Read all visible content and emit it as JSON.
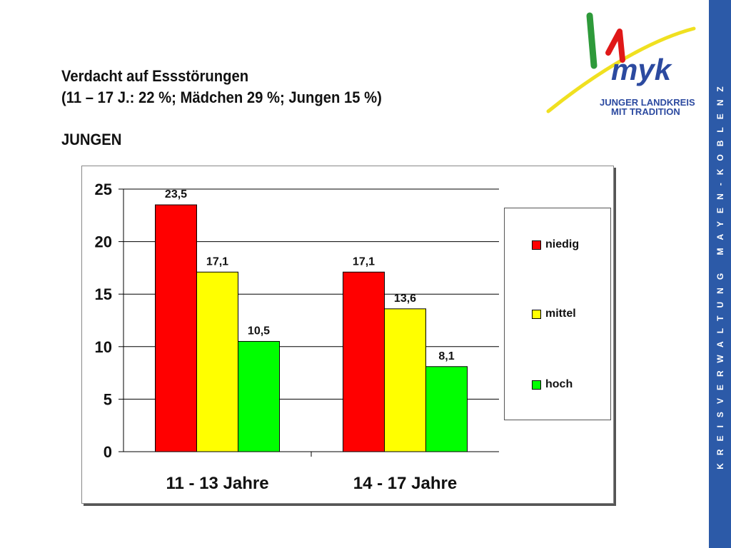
{
  "slide": {
    "title": "Verdacht auf Essstörungen",
    "subtitle": "(11 – 17 J.: 22 %; Mädchen 29 %; Jungen 15 %)",
    "group_label": "JUNGEN"
  },
  "logo": {
    "text_line1": "JUNGER LANDKREIS",
    "text_line2": "MIT TRADITION",
    "mark_text": "myk",
    "colors": {
      "green": "#2e9a3a",
      "red": "#e01818",
      "yellow": "#f0e020",
      "blue": "#2c4aa0"
    }
  },
  "sidebar": {
    "text": "KREISVERWALTUNG MAYEN-KOBLENZ",
    "color": "#2c5aa8"
  },
  "chart_data": {
    "type": "bar",
    "categories": [
      "11 - 13 Jahre",
      "14 - 17 Jahre"
    ],
    "series": [
      {
        "name": "niedig",
        "values": [
          23.5,
          17.1
        ],
        "labels": [
          "23,5",
          "17,1"
        ],
        "color": "#ff0000"
      },
      {
        "name": "mittel",
        "values": [
          17.1,
          13.6
        ],
        "labels": [
          "17,1",
          "13,6"
        ],
        "color": "#ffff00"
      },
      {
        "name": "hoch",
        "values": [
          10.5,
          8.1
        ],
        "labels": [
          "10,5",
          "8,1"
        ],
        "color": "#00ff00"
      }
    ],
    "ylim": [
      0,
      25
    ],
    "yticks": [
      0,
      5,
      10,
      15,
      20,
      25
    ],
    "grid": true,
    "legend_position": "right"
  }
}
